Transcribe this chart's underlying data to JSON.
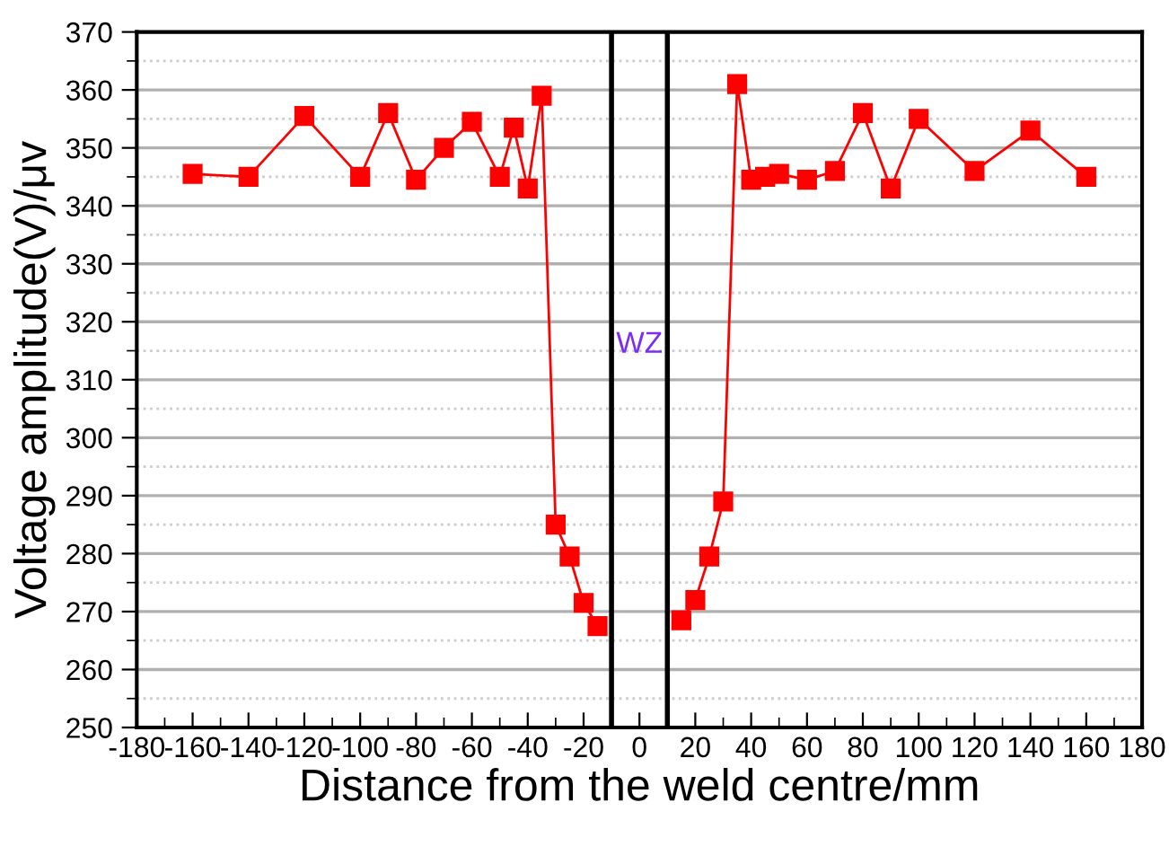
{
  "chart_data": {
    "type": "line",
    "xlabel": "Distance from the weld centre/mm",
    "ylabel": "Voltage amplitude(V)/μv",
    "xlim": [
      -180,
      180
    ],
    "xticks": [
      -180,
      -160,
      -140,
      -120,
      -100,
      -80,
      -60,
      -40,
      -20,
      0,
      20,
      40,
      60,
      80,
      100,
      120,
      140,
      160,
      180
    ],
    "ylim": [
      250,
      370
    ],
    "yticks": [
      250,
      260,
      270,
      280,
      290,
      300,
      310,
      320,
      330,
      340,
      350,
      360,
      370
    ],
    "grid": "y",
    "marker": "square",
    "line_style": "solid",
    "legend": false,
    "series": [
      {
        "color": "#ff0000",
        "x": [
          -160,
          -140,
          -120,
          -100,
          -90,
          -80,
          -70,
          -60,
          -50,
          -45,
          -40,
          -35,
          -30,
          -25,
          -20,
          -15
        ],
        "values": [
          345.5,
          345,
          355.5,
          345,
          356,
          344.5,
          350,
          354.5,
          345,
          353.5,
          343,
          359,
          285,
          279.5,
          271.5,
          267.5
        ]
      },
      {
        "color": "#ff0000",
        "x": [
          15,
          20,
          25,
          30,
          35,
          40,
          45,
          50,
          60,
          70,
          80,
          90,
          100,
          120,
          140,
          160
        ],
        "values": [
          268.5,
          272,
          279.5,
          289,
          361,
          344.5,
          345,
          345.5,
          344.5,
          346,
          356,
          343,
          355,
          346,
          353,
          345
        ]
      }
    ],
    "ref_lines": [
      {
        "axis": "x",
        "value": -10,
        "color": "#000000"
      },
      {
        "axis": "x",
        "value": 10,
        "color": "#000000"
      }
    ],
    "annotations": [
      "WZ"
    ]
  }
}
